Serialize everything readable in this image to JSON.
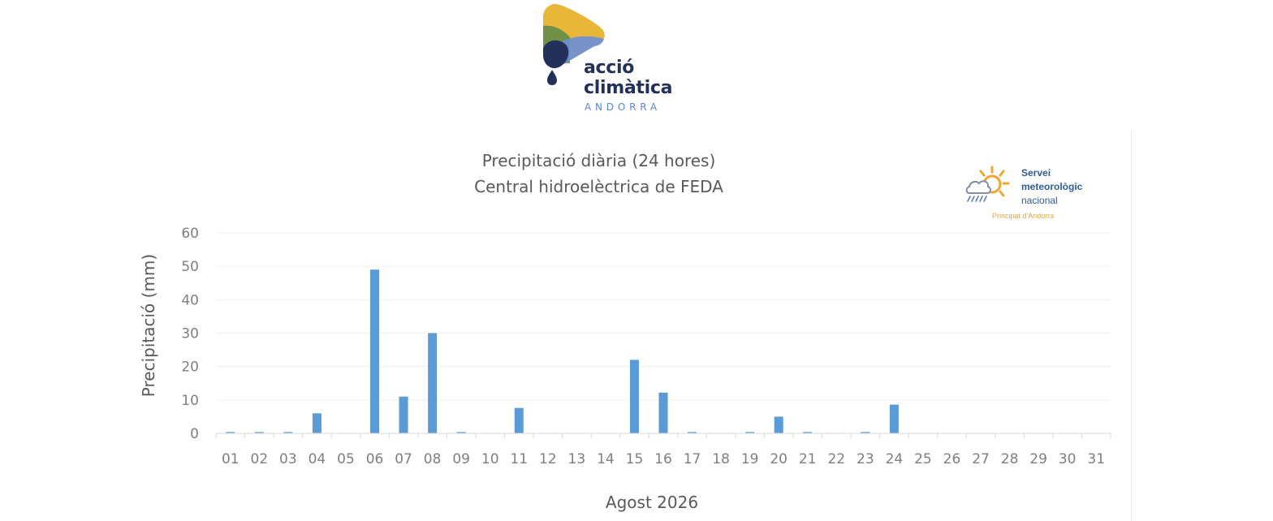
{
  "logo": {
    "line1": "acció",
    "line2": "climàtica",
    "line3": "ANDORRA"
  },
  "service_logo": {
    "line1": "Servei",
    "line2": "meteorològic",
    "line3": "nacional",
    "line4": "Principat d'Andorra"
  },
  "chart_data": {
    "type": "bar",
    "title": "Precipitació diària (24 hores)",
    "subtitle": "Central hidroelèctrica de FEDA",
    "xlabel": "Agost 2026",
    "ylabel": "Precipitació (mm)",
    "ylim": [
      0,
      60
    ],
    "yticks": [
      0,
      10,
      20,
      30,
      40,
      50,
      60
    ],
    "grid": true,
    "bar_color": "#5b9bd5",
    "categories": [
      "01",
      "02",
      "03",
      "04",
      "05",
      "06",
      "07",
      "08",
      "09",
      "10",
      "11",
      "12",
      "13",
      "14",
      "15",
      "16",
      "17",
      "18",
      "19",
      "20",
      "21",
      "22",
      "23",
      "24",
      "25",
      "26",
      "27",
      "28",
      "29",
      "30",
      "31"
    ],
    "values": [
      0.4,
      0.4,
      0.4,
      6,
      0,
      49,
      11,
      30,
      0.4,
      0,
      7.6,
      0,
      0,
      0,
      22,
      12.2,
      0.4,
      0,
      0.4,
      5,
      0.4,
      0,
      0.4,
      8.6,
      0,
      0,
      0,
      0,
      0,
      0,
      0
    ]
  }
}
